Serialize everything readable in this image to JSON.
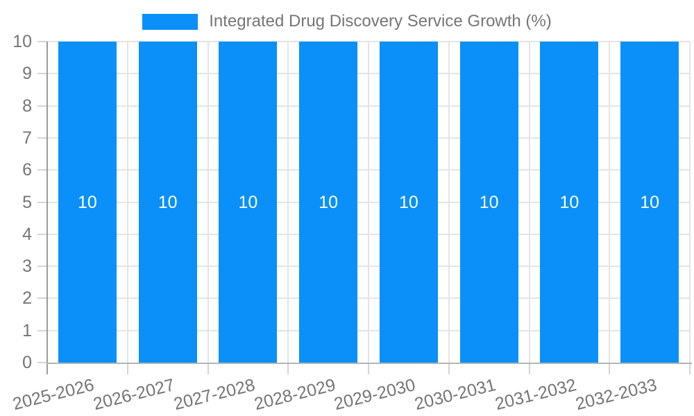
{
  "chart_data": {
    "type": "bar",
    "title": "Integrated Drug Discovery Service Growth (%)",
    "series": [
      {
        "name": "Integrated Drug Discovery Service Growth (%)",
        "values": [
          10,
          10,
          10,
          10,
          10,
          10,
          10,
          10
        ]
      }
    ],
    "categories": [
      "2025-2026",
      "2026-2027",
      "2027-2028",
      "2028-2029",
      "2029-2030",
      "2030-2031",
      "2031-2032",
      "2032-2033"
    ],
    "values": [
      10,
      10,
      10,
      10,
      10,
      10,
      10,
      10
    ],
    "bar_value_labels": [
      "10",
      "10",
      "10",
      "10",
      "10",
      "10",
      "10",
      "10"
    ],
    "xlabel": "",
    "ylabel": "",
    "ylim": [
      0,
      10
    ],
    "yticks": [
      0,
      1,
      2,
      3,
      4,
      5,
      6,
      7,
      8,
      9,
      10
    ],
    "grid": true,
    "legend_position": "top-center",
    "x_label_rotation_deg": -14,
    "colors": {
      "bar": "#0a90f8",
      "grid_line": "#e4e4e4",
      "tick_mark": "#d4d4d4",
      "y_axis_line": "#9b9b9b",
      "x_axis_line": "#b4b4b4",
      "text": "#757575",
      "bar_label_text": "#ffffff",
      "background": "#ffffff"
    }
  }
}
